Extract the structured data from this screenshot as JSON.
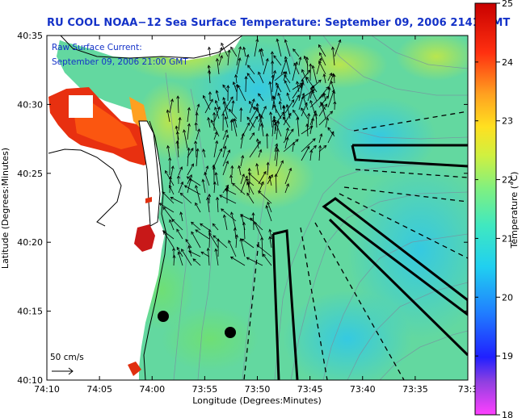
{
  "title": "RU COOL  NOAA−12  Sea Surface Temperature:  September 09, 2006 2141 GMT",
  "map": {
    "raw_current_label": "Raw Surface Current:",
    "raw_current_time": "September 09, 2006 21:00 GMT",
    "scale_label": "50 cm/s",
    "xlabel": "Longitude (Degrees:Minutes)",
    "ylabel": "Latitude (Degrees:Minutes)",
    "x_ticks": [
      "74:10",
      "74:05",
      "74:00",
      "73:55",
      "73:50",
      "73:45",
      "73:40",
      "73:35",
      "73:3"
    ],
    "y_ticks": [
      "40:35",
      "40:30",
      "40:25",
      "40:20",
      "40:15",
      "40:10"
    ]
  },
  "colorbar": {
    "label": "Temperature (°C)",
    "ticks": [
      "25",
      "24",
      "23",
      "22",
      "21",
      "20",
      "19",
      "18"
    ],
    "min": 18,
    "max": 25
  },
  "colors": {
    "title": "#1432c8",
    "annotation": "#1432c8",
    "water_base": "#63d8a0",
    "land": "#ffffff"
  }
}
